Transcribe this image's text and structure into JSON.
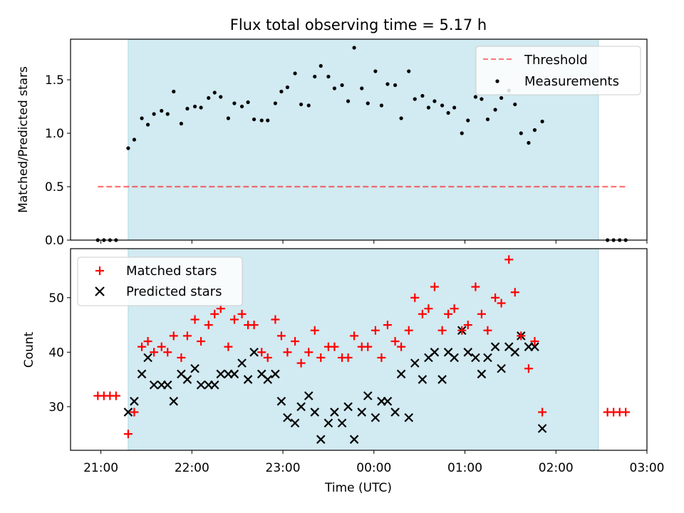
{
  "title": "Flux total observing time = 5.17 h",
  "colors": {
    "shade": "#add8e6",
    "threshold": "#ff0000",
    "matched": "#ff0000",
    "predicted": "#000000",
    "measure": "#000000"
  },
  "chart_data": [
    {
      "type": "scatter",
      "ylabel": "Matched/Predicted stars",
      "xlabel": "",
      "xlim": [
        "20:40",
        "03:00"
      ],
      "ylim": [
        0,
        1.88
      ],
      "ytick_labels": [
        "0.0",
        "0.5",
        "1.0",
        "1.5"
      ],
      "ytick_values": [
        0,
        0.5,
        1.0,
        1.5
      ],
      "grid": false,
      "legend_position": "top-right",
      "shaded_span": [
        "21:18",
        "02:28"
      ],
      "threshold": {
        "name": "Threshold",
        "value": 0.5,
        "x": [
          "20:58",
          "02:46"
        ]
      },
      "series": [
        {
          "name": "Measurements",
          "points": [
            [
              "20:58",
              0
            ],
            [
              "21:02",
              0
            ],
            [
              "21:06",
              0
            ],
            [
              "21:10",
              0
            ],
            [
              "21:18",
              0.86
            ],
            [
              "21:22",
              0.94
            ],
            [
              "21:27",
              1.14
            ],
            [
              "21:31",
              1.08
            ],
            [
              "21:35",
              1.18
            ],
            [
              "21:40",
              1.21
            ],
            [
              "21:44",
              1.18
            ],
            [
              "21:48",
              1.39
            ],
            [
              "21:53",
              1.09
            ],
            [
              "21:57",
              1.23
            ],
            [
              "22:02",
              1.25
            ],
            [
              "22:06",
              1.24
            ],
            [
              "22:11",
              1.33
            ],
            [
              "22:15",
              1.38
            ],
            [
              "22:19",
              1.34
            ],
            [
              "22:24",
              1.14
            ],
            [
              "22:28",
              1.28
            ],
            [
              "22:33",
              1.25
            ],
            [
              "22:37",
              1.29
            ],
            [
              "22:41",
              1.13
            ],
            [
              "22:46",
              1.12
            ],
            [
              "22:50",
              1.12
            ],
            [
              "22:55",
              1.28
            ],
            [
              "22:59",
              1.39
            ],
            [
              "23:03",
              1.43
            ],
            [
              "23:08",
              1.56
            ],
            [
              "23:12",
              1.27
            ],
            [
              "23:17",
              1.26
            ],
            [
              "23:21",
              1.53
            ],
            [
              "23:25",
              1.63
            ],
            [
              "23:30",
              1.53
            ],
            [
              "23:34",
              1.42
            ],
            [
              "23:39",
              1.45
            ],
            [
              "23:43",
              1.3
            ],
            [
              "23:47",
              1.8
            ],
            [
              "23:52",
              1.42
            ],
            [
              "23:56",
              1.28
            ],
            [
              "00:01",
              1.58
            ],
            [
              "00:05",
              1.26
            ],
            [
              "00:09",
              1.46
            ],
            [
              "00:14",
              1.45
            ],
            [
              "00:18",
              1.14
            ],
            [
              "00:23",
              1.58
            ],
            [
              "00:27",
              1.32
            ],
            [
              "00:32",
              1.35
            ],
            [
              "00:36",
              1.24
            ],
            [
              "00:40",
              1.3
            ],
            [
              "00:45",
              1.26
            ],
            [
              "00:49",
              1.19
            ],
            [
              "00:53",
              1.24
            ],
            [
              "00:58",
              1.0
            ],
            [
              "01:02",
              1.12
            ],
            [
              "01:07",
              1.34
            ],
            [
              "01:11",
              1.32
            ],
            [
              "01:15",
              1.13
            ],
            [
              "01:20",
              1.22
            ],
            [
              "01:24",
              1.33
            ],
            [
              "01:29",
              1.4
            ],
            [
              "01:33",
              1.27
            ],
            [
              "01:37",
              1.0
            ],
            [
              "01:42",
              0.91
            ],
            [
              "01:46",
              1.03
            ],
            [
              "01:51",
              1.11
            ],
            [
              "02:34",
              0
            ],
            [
              "02:38",
              0
            ],
            [
              "02:42",
              0
            ],
            [
              "02:46",
              0
            ]
          ]
        }
      ]
    },
    {
      "type": "scatter",
      "ylabel": "Count",
      "xlabel": "Time (UTC)",
      "xlim": [
        "20:40",
        "03:00"
      ],
      "ylim": [
        22,
        59
      ],
      "ytick_labels": [
        "30",
        "40",
        "50"
      ],
      "ytick_values": [
        30,
        40,
        50
      ],
      "xtick_labels": [
        "21:00",
        "22:00",
        "23:00",
        "00:00",
        "01:00",
        "02:00",
        "03:00"
      ],
      "grid": false,
      "legend_position": "top-left",
      "shaded_span": [
        "21:18",
        "02:28"
      ],
      "series": [
        {
          "name": "Matched stars",
          "marker": "plus",
          "points": [
            [
              "20:58",
              32
            ],
            [
              "21:02",
              32
            ],
            [
              "21:06",
              32
            ],
            [
              "21:10",
              32
            ],
            [
              "21:18",
              25
            ],
            [
              "21:22",
              29
            ],
            [
              "21:27",
              41
            ],
            [
              "21:31",
              42
            ],
            [
              "21:35",
              40
            ],
            [
              "21:40",
              41
            ],
            [
              "21:44",
              40
            ],
            [
              "21:48",
              43
            ],
            [
              "21:53",
              39
            ],
            [
              "21:57",
              43
            ],
            [
              "22:02",
              46
            ],
            [
              "22:06",
              42
            ],
            [
              "22:11",
              45
            ],
            [
              "22:15",
              47
            ],
            [
              "22:19",
              48
            ],
            [
              "22:24",
              41
            ],
            [
              "22:28",
              46
            ],
            [
              "22:33",
              47
            ],
            [
              "22:37",
              45
            ],
            [
              "22:41",
              45
            ],
            [
              "22:46",
              40
            ],
            [
              "22:50",
              39
            ],
            [
              "22:55",
              46
            ],
            [
              "22:59",
              43
            ],
            [
              "23:03",
              40
            ],
            [
              "23:08",
              42
            ],
            [
              "23:12",
              38
            ],
            [
              "23:17",
              40
            ],
            [
              "23:21",
              44
            ],
            [
              "23:25",
              39
            ],
            [
              "23:30",
              41
            ],
            [
              "23:34",
              41
            ],
            [
              "23:39",
              39
            ],
            [
              "23:43",
              39
            ],
            [
              "23:47",
              43
            ],
            [
              "23:52",
              41
            ],
            [
              "23:56",
              41
            ],
            [
              "00:01",
              44
            ],
            [
              "00:05",
              39
            ],
            [
              "00:09",
              45
            ],
            [
              "00:14",
              42
            ],
            [
              "00:18",
              41
            ],
            [
              "00:23",
              44
            ],
            [
              "00:27",
              50
            ],
            [
              "00:32",
              47
            ],
            [
              "00:36",
              48
            ],
            [
              "00:40",
              52
            ],
            [
              "00:45",
              44
            ],
            [
              "00:49",
              47
            ],
            [
              "00:53",
              48
            ],
            [
              "00:58",
              44
            ],
            [
              "01:02",
              45
            ],
            [
              "01:07",
              52
            ],
            [
              "01:11",
              47
            ],
            [
              "01:15",
              44
            ],
            [
              "01:20",
              50
            ],
            [
              "01:24",
              49
            ],
            [
              "01:29",
              57
            ],
            [
              "01:33",
              51
            ],
            [
              "01:37",
              43
            ],
            [
              "01:42",
              37
            ],
            [
              "01:46",
              42
            ],
            [
              "01:51",
              29
            ],
            [
              "02:34",
              29
            ],
            [
              "02:38",
              29
            ],
            [
              "02:42",
              29
            ],
            [
              "02:46",
              29
            ]
          ]
        },
        {
          "name": "Predicted stars",
          "marker": "x",
          "points": [
            [
              "21:18",
              29
            ],
            [
              "21:22",
              31
            ],
            [
              "21:27",
              36
            ],
            [
              "21:31",
              39
            ],
            [
              "21:35",
              34
            ],
            [
              "21:40",
              34
            ],
            [
              "21:44",
              34
            ],
            [
              "21:48",
              31
            ],
            [
              "21:53",
              36
            ],
            [
              "21:57",
              35
            ],
            [
              "22:02",
              37
            ],
            [
              "22:06",
              34
            ],
            [
              "22:11",
              34
            ],
            [
              "22:15",
              34
            ],
            [
              "22:19",
              36
            ],
            [
              "22:24",
              36
            ],
            [
              "22:28",
              36
            ],
            [
              "22:33",
              38
            ],
            [
              "22:37",
              35
            ],
            [
              "22:41",
              40
            ],
            [
              "22:46",
              36
            ],
            [
              "22:50",
              35
            ],
            [
              "22:55",
              36
            ],
            [
              "22:59",
              31
            ],
            [
              "23:03",
              28
            ],
            [
              "23:08",
              27
            ],
            [
              "23:12",
              30
            ],
            [
              "23:17",
              32
            ],
            [
              "23:21",
              29
            ],
            [
              "23:25",
              24
            ],
            [
              "23:30",
              27
            ],
            [
              "23:34",
              29
            ],
            [
              "23:39",
              27
            ],
            [
              "23:43",
              30
            ],
            [
              "23:47",
              24
            ],
            [
              "23:52",
              29
            ],
            [
              "23:56",
              32
            ],
            [
              "00:01",
              28
            ],
            [
              "00:05",
              31
            ],
            [
              "00:09",
              31
            ],
            [
              "00:14",
              29
            ],
            [
              "00:18",
              36
            ],
            [
              "00:23",
              28
            ],
            [
              "00:27",
              38
            ],
            [
              "00:32",
              35
            ],
            [
              "00:36",
              39
            ],
            [
              "00:40",
              40
            ],
            [
              "00:45",
              35
            ],
            [
              "00:49",
              40
            ],
            [
              "00:53",
              39
            ],
            [
              "00:58",
              44
            ],
            [
              "01:02",
              40
            ],
            [
              "01:07",
              39
            ],
            [
              "01:11",
              36
            ],
            [
              "01:15",
              39
            ],
            [
              "01:20",
              41
            ],
            [
              "01:24",
              37
            ],
            [
              "01:29",
              41
            ],
            [
              "01:33",
              40
            ],
            [
              "01:37",
              43
            ],
            [
              "01:42",
              41
            ],
            [
              "01:46",
              41
            ],
            [
              "01:51",
              26
            ]
          ]
        }
      ]
    }
  ]
}
